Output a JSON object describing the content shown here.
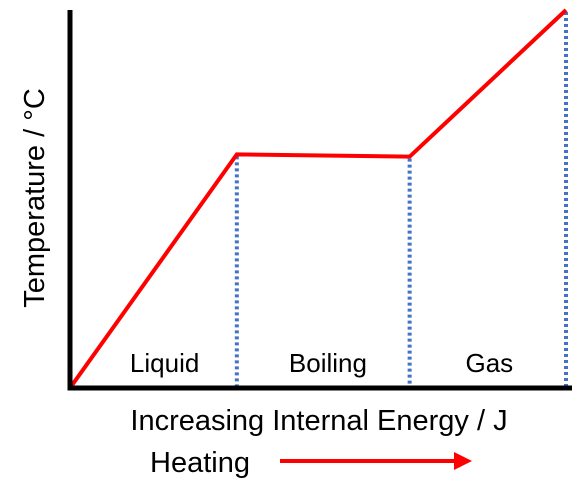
{
  "chart_data": {
    "type": "line",
    "title": "",
    "xlabel": "Increasing Internal Energy / J",
    "ylabel": "Temperature / °C",
    "axis_ticks": false,
    "grid": false,
    "xlim": [
      0,
      100
    ],
    "ylim": [
      0,
      100
    ],
    "series": [
      {
        "color": "#ff0000",
        "x": [
          0,
          33.5,
          68.2,
          99.6
        ],
        "y": [
          0,
          61.8,
          61.2,
          100
        ]
      }
    ],
    "phase_boundaries": {
      "x": [
        33.5,
        68.2,
        99.6
      ],
      "color": "#4472c4",
      "style": "dotted"
    },
    "regions": [
      {
        "label": "Liquid",
        "x": 19.0
      },
      {
        "label": "Boiling",
        "x": 51.8
      },
      {
        "label": "Gas",
        "x": 84.2
      }
    ],
    "annotation": {
      "label": "Heating",
      "arrow_color": "#ff0000",
      "arrow_direction": "right"
    },
    "colors": {
      "axis": "#000000",
      "line": "#ff0000",
      "boundary": "#4472c4"
    }
  }
}
